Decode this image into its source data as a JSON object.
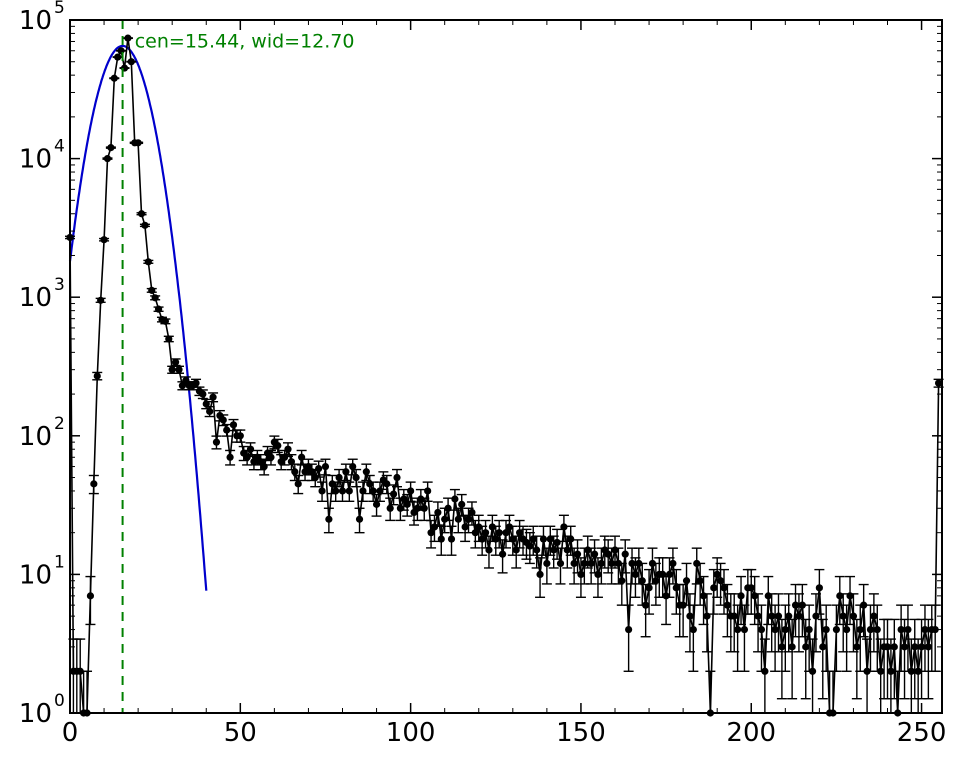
{
  "chart_data": {
    "type": "scatter",
    "title": "",
    "xlabel": "",
    "ylabel": "",
    "xlim": [
      0,
      256
    ],
    "ylim": [
      1,
      100000
    ],
    "yscale": "log",
    "grid": false,
    "x_ticks": [
      0,
      50,
      100,
      150,
      200,
      250
    ],
    "y_ticks": [
      {
        "value": 1,
        "base": "10",
        "exp": "0"
      },
      {
        "value": 10,
        "base": "10",
        "exp": "1"
      },
      {
        "value": 100,
        "base": "10",
        "exp": "2"
      },
      {
        "value": 1000,
        "base": "10",
        "exp": "3"
      },
      {
        "value": 10000,
        "base": "10",
        "exp": "4"
      },
      {
        "value": 100000,
        "base": "10",
        "exp": "5"
      }
    ],
    "colors": {
      "data": "#000000",
      "fit": "#0000cc",
      "center": "#008000"
    },
    "annotation": {
      "text": "cen=15.44, wid=12.70",
      "x": 19,
      "y": 70000
    },
    "center_line": {
      "x": 15.44
    },
    "fit": {
      "center": 15.44,
      "width": 12.7,
      "peak": 65000
    },
    "points": [
      [
        0,
        2700
      ],
      [
        1,
        2
      ],
      [
        2,
        2
      ],
      [
        3,
        2
      ],
      [
        4,
        1
      ],
      [
        5,
        1
      ],
      [
        6,
        7
      ],
      [
        7,
        45
      ],
      [
        8,
        270
      ],
      [
        9,
        950
      ],
      [
        10,
        2600
      ],
      [
        11,
        10000
      ],
      [
        12,
        12000
      ],
      [
        13,
        38000
      ],
      [
        14,
        54000
      ],
      [
        15,
        60000
      ],
      [
        16,
        45000
      ],
      [
        17,
        74000
      ],
      [
        18,
        50000
      ],
      [
        19,
        13000
      ],
      [
        20,
        13000
      ],
      [
        21,
        4000
      ],
      [
        22,
        3300
      ],
      [
        23,
        1800
      ],
      [
        24,
        1120
      ],
      [
        25,
        990
      ],
      [
        26,
        820
      ],
      [
        27,
        690
      ],
      [
        28,
        670
      ],
      [
        29,
        500
      ],
      [
        30,
        300
      ],
      [
        31,
        340
      ],
      [
        32,
        300
      ],
      [
        33,
        230
      ],
      [
        34,
        250
      ],
      [
        35,
        230
      ],
      [
        36,
        230
      ],
      [
        37,
        240
      ],
      [
        38,
        210
      ],
      [
        39,
        200
      ],
      [
        40,
        170
      ],
      [
        41,
        150
      ],
      [
        42,
        190
      ],
      [
        43,
        90
      ],
      [
        44,
        140
      ],
      [
        45,
        130
      ],
      [
        46,
        110
      ],
      [
        47,
        70
      ],
      [
        48,
        120
      ],
      [
        49,
        100
      ],
      [
        50,
        100
      ],
      [
        51,
        75
      ],
      [
        52,
        70
      ],
      [
        53,
        80
      ],
      [
        54,
        65
      ],
      [
        55,
        70
      ],
      [
        56,
        65
      ],
      [
        57,
        60
      ],
      [
        58,
        75
      ],
      [
        59,
        70
      ],
      [
        60,
        90
      ],
      [
        61,
        85
      ],
      [
        62,
        65
      ],
      [
        63,
        70
      ],
      [
        64,
        80
      ],
      [
        65,
        65
      ],
      [
        66,
        55
      ],
      [
        67,
        45
      ],
      [
        68,
        70
      ],
      [
        69,
        55
      ],
      [
        70,
        60
      ],
      [
        71,
        55
      ],
      [
        72,
        50
      ],
      [
        73,
        58
      ],
      [
        74,
        40
      ],
      [
        75,
        60
      ],
      [
        76,
        25
      ],
      [
        77,
        45
      ],
      [
        78,
        40
      ],
      [
        79,
        50
      ],
      [
        80,
        40
      ],
      [
        81,
        55
      ],
      [
        82,
        40
      ],
      [
        83,
        60
      ],
      [
        84,
        50
      ],
      [
        85,
        25
      ],
      [
        86,
        40
      ],
      [
        87,
        55
      ],
      [
        88,
        45
      ],
      [
        89,
        40
      ],
      [
        90,
        32
      ],
      [
        91,
        40
      ],
      [
        92,
        48
      ],
      [
        93,
        45
      ],
      [
        94,
        30
      ],
      [
        95,
        38
      ],
      [
        96,
        50
      ],
      [
        97,
        30
      ],
      [
        98,
        35
      ],
      [
        99,
        32
      ],
      [
        100,
        40
      ],
      [
        101,
        28
      ],
      [
        102,
        30
      ],
      [
        103,
        35
      ],
      [
        104,
        30
      ],
      [
        105,
        40
      ],
      [
        106,
        20
      ],
      [
        107,
        22
      ],
      [
        108,
        28
      ],
      [
        109,
        18
      ],
      [
        110,
        25
      ],
      [
        111,
        30
      ],
      [
        112,
        18
      ],
      [
        113,
        35
      ],
      [
        114,
        25
      ],
      [
        115,
        32
      ],
      [
        116,
        22
      ],
      [
        117,
        25
      ],
      [
        118,
        28
      ],
      [
        119,
        20
      ],
      [
        120,
        22
      ],
      [
        121,
        18
      ],
      [
        122,
        20
      ],
      [
        123,
        15
      ],
      [
        124,
        22
      ],
      [
        125,
        18
      ],
      [
        126,
        20
      ],
      [
        127,
        14
      ],
      [
        128,
        20
      ],
      [
        129,
        22
      ],
      [
        130,
        18
      ],
      [
        131,
        15
      ],
      [
        132,
        20
      ],
      [
        133,
        18
      ],
      [
        134,
        17
      ],
      [
        135,
        16
      ],
      [
        136,
        18
      ],
      [
        137,
        15
      ],
      [
        138,
        10
      ],
      [
        139,
        18
      ],
      [
        140,
        12
      ],
      [
        141,
        18
      ],
      [
        142,
        15
      ],
      [
        143,
        17
      ],
      [
        144,
        12
      ],
      [
        145,
        22
      ],
      [
        146,
        15
      ],
      [
        147,
        18
      ],
      [
        148,
        12
      ],
      [
        149,
        14
      ],
      [
        150,
        10
      ],
      [
        151,
        12
      ],
      [
        152,
        15
      ],
      [
        153,
        12
      ],
      [
        154,
        14
      ],
      [
        155,
        10
      ],
      [
        156,
        12
      ],
      [
        157,
        15
      ],
      [
        158,
        14
      ],
      [
        159,
        12
      ],
      [
        160,
        15
      ],
      [
        161,
        12
      ],
      [
        162,
        9
      ],
      [
        163,
        14
      ],
      [
        164,
        4
      ],
      [
        165,
        12
      ],
      [
        166,
        10
      ],
      [
        167,
        12
      ],
      [
        168,
        9
      ],
      [
        169,
        6
      ],
      [
        170,
        8
      ],
      [
        171,
        12
      ],
      [
        172,
        9
      ],
      [
        173,
        10
      ],
      [
        174,
        10
      ],
      [
        175,
        7
      ],
      [
        176,
        10
      ],
      [
        177,
        12
      ],
      [
        178,
        8
      ],
      [
        179,
        6
      ],
      [
        180,
        6
      ],
      [
        181,
        9
      ],
      [
        182,
        5
      ],
      [
        183,
        4
      ],
      [
        184,
        12
      ],
      [
        185,
        9
      ],
      [
        186,
        7
      ],
      [
        187,
        5
      ],
      [
        188,
        1
      ],
      [
        189,
        8
      ],
      [
        190,
        10
      ],
      [
        191,
        9
      ],
      [
        192,
        8
      ],
      [
        193,
        6
      ],
      [
        194,
        5
      ],
      [
        195,
        5
      ],
      [
        196,
        4
      ],
      [
        197,
        7
      ],
      [
        198,
        4
      ],
      [
        199,
        8
      ],
      [
        200,
        8
      ],
      [
        201,
        7
      ],
      [
        202,
        5
      ],
      [
        203,
        4
      ],
      [
        204,
        2
      ],
      [
        205,
        7
      ],
      [
        206,
        5
      ],
      [
        207,
        4
      ],
      [
        208,
        5
      ],
      [
        209,
        3
      ],
      [
        210,
        4
      ],
      [
        211,
        5
      ],
      [
        212,
        3
      ],
      [
        213,
        6
      ],
      [
        214,
        5
      ],
      [
        215,
        6
      ],
      [
        216,
        3
      ],
      [
        217,
        4
      ],
      [
        218,
        2
      ],
      [
        219,
        5
      ],
      [
        220,
        8
      ],
      [
        221,
        3
      ],
      [
        222,
        4
      ],
      [
        223,
        1
      ],
      [
        224,
        1
      ],
      [
        225,
        4
      ],
      [
        226,
        7
      ],
      [
        227,
        5
      ],
      [
        228,
        4
      ],
      [
        229,
        7
      ],
      [
        230,
        5
      ],
      [
        231,
        3
      ],
      [
        232,
        4
      ],
      [
        233,
        6
      ],
      [
        234,
        2
      ],
      [
        235,
        4
      ],
      [
        236,
        5
      ],
      [
        237,
        4
      ],
      [
        238,
        2
      ],
      [
        239,
        3
      ],
      [
        240,
        3
      ],
      [
        241,
        2
      ],
      [
        242,
        3
      ],
      [
        243,
        1
      ],
      [
        244,
        4
      ],
      [
        245,
        3
      ],
      [
        246,
        4
      ],
      [
        247,
        2
      ],
      [
        248,
        3
      ],
      [
        249,
        2
      ],
      [
        250,
        3
      ],
      [
        251,
        4
      ],
      [
        252,
        3
      ],
      [
        253,
        4
      ],
      [
        254,
        4
      ],
      [
        255,
        240
      ]
    ]
  }
}
